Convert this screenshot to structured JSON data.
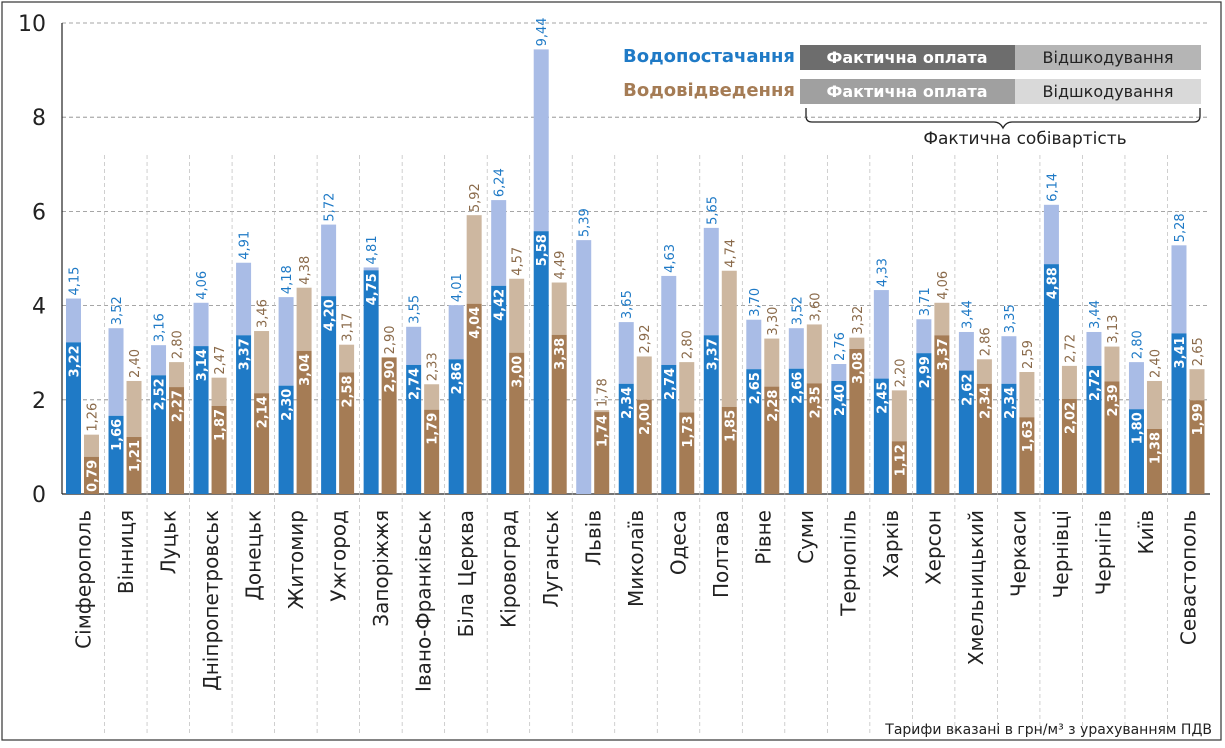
{
  "chart_data": {
    "type": "bar",
    "categories": [
      "Сімферополь",
      "Вінниця",
      "Луцьк",
      "Дніпропетровськ",
      "Донецьк",
      "Житомир",
      "Ужгород",
      "Запоріжжя",
      "Івано-Франківськ",
      "Біла Церква",
      "Кіровоград",
      "Луганськ",
      "Львів",
      "Миколаїв",
      "Одеса",
      "Полтава",
      "Рівне",
      "Суми",
      "Тернопіль",
      "Харків",
      "Херсон",
      "Хмельницький",
      "Черкаси",
      "Чернівці",
      "Чернігів",
      "Київ",
      "Севастополь"
    ],
    "ylim": [
      0,
      10
    ],
    "yticks": [
      0,
      2,
      4,
      6,
      8,
      10
    ],
    "grid": true,
    "series": [
      {
        "name": "Водопостачання",
        "actual": [
          "3,22",
          "1,66",
          "2,52",
          "3,14",
          "3,37",
          "2,30",
          "4,20",
          "4,75",
          "2,74",
          "2,86",
          "4,42",
          "5,58",
          "",
          "2,34",
          "2,74",
          "3,37",
          "2,65",
          "2,66",
          "2,40",
          "2,45",
          "2,99",
          "2,62",
          "2,34",
          "4,88",
          "2,72",
          "1,80",
          "3,41"
        ],
        "cost": [
          "4,15",
          "3,52",
          "3,16",
          "4,06",
          "4,91",
          "4,18",
          "5,72",
          "4,81",
          "3,55",
          "4,01",
          "6,24",
          "9,44",
          "5,39",
          "3,65",
          "4,63",
          "5,65",
          "3,70",
          "3,52",
          "2,76",
          "4,33",
          "3,71",
          "3,44",
          "3,35",
          "6,14",
          "3,44",
          "2,80",
          "5,28"
        ]
      },
      {
        "name": "Водовідведення",
        "actual": [
          "0,79",
          "1,21",
          "2,27",
          "1,87",
          "2,14",
          "3,04",
          "2,58",
          "2,90",
          "1,79",
          "4,04",
          "3,00",
          "3,38",
          "1,74",
          "2,00",
          "1,73",
          "1,85",
          "2,28",
          "2,35",
          "3,08",
          "1,12",
          "3,37",
          "2,34",
          "1,63",
          "2,02",
          "2,39",
          "1,38",
          "1,99"
        ],
        "cost": [
          "1,26",
          "2,40",
          "2,80",
          "2,47",
          "3,46",
          "4,38",
          "3,17",
          "2,90",
          "2,33",
          "5,92",
          "4,57",
          "4,49",
          "1,78",
          "2,92",
          "2,80",
          "4,74",
          "3,30",
          "3,60",
          "3,32",
          "2,20",
          "4,06",
          "2,86",
          "2,59",
          "2,72",
          "3,13",
          "2,40",
          "2,65"
        ]
      }
    ],
    "colors": {
      "water_actual": "#1f7ac6",
      "water_comp": "#a9bce6",
      "water_text": "#1f7ac6",
      "sewer_actual": "#a57c55",
      "sewer_comp": "#cdb7a0",
      "sewer_text": "#8a6a4a"
    }
  },
  "legend": {
    "water_label": "Водопостачання",
    "sewer_label": "Водовідведення",
    "actual_pay": "Фактична оплата",
    "compensation": "Відшкодування",
    "actual_cost": "Фактична собівартість"
  },
  "footnote": "Тарифи вказані в грн/м³ з урахуванням ПДВ"
}
